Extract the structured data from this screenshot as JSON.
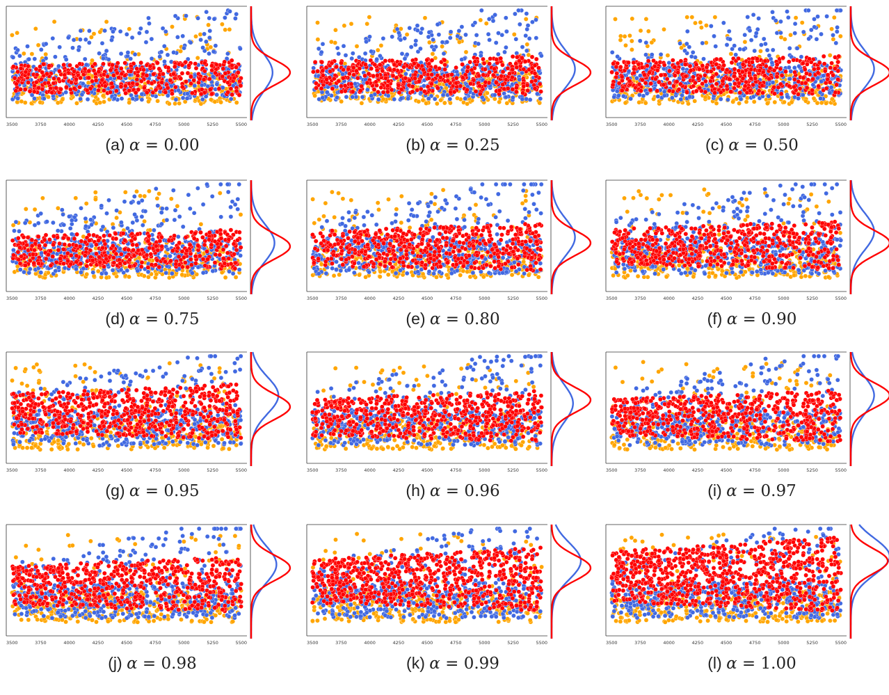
{
  "figure": {
    "alpha_symbol": "α",
    "equals_sign": " = ",
    "colors": {
      "blue": "#4169e1",
      "orange": "#ffa500",
      "red": "#ff0000",
      "axis": "#333333"
    }
  },
  "chart_data": [
    {
      "type": "scatter",
      "label": "(a)",
      "alpha": "0.00",
      "x_ticks": [
        "3500",
        "3750",
        "4000",
        "4250",
        "4500",
        "4750",
        "5000",
        "5250",
        "5500"
      ],
      "xlim": [
        3450,
        5550
      ],
      "red_level": 0.38,
      "red_density": 0.25,
      "marginal": {
        "red_peak": 0.58,
        "red_height": 1.0,
        "blue_peak": 0.58,
        "blue_height": 0.55
      }
    },
    {
      "type": "scatter",
      "label": "(b)",
      "alpha": "0.25",
      "x_ticks": [
        "3500",
        "3750",
        "4000",
        "4250",
        "4500",
        "4750",
        "5000",
        "5250",
        "5500"
      ],
      "xlim": [
        3450,
        5550
      ],
      "red_level": 0.4,
      "red_density": 0.3,
      "marginal": {
        "red_peak": 0.58,
        "red_height": 1.0,
        "blue_peak": 0.55,
        "blue_height": 0.6
      }
    },
    {
      "type": "scatter",
      "label": "(c)",
      "alpha": "0.50",
      "x_ticks": [
        "3500",
        "3750",
        "4000",
        "4250",
        "4500",
        "4750",
        "5000",
        "5250",
        "5500"
      ],
      "xlim": [
        3450,
        5550
      ],
      "red_level": 0.4,
      "red_density": 0.3,
      "marginal": {
        "red_peak": 0.58,
        "red_height": 1.0,
        "blue_peak": 0.55,
        "blue_height": 0.6
      }
    },
    {
      "type": "scatter",
      "label": "(d)",
      "alpha": "0.75",
      "x_ticks": [
        "3500",
        "3750",
        "4000",
        "4250",
        "4500",
        "4750",
        "5000",
        "5250",
        "5500"
      ],
      "xlim": [
        3450,
        5550
      ],
      "red_level": 0.4,
      "red_density": 0.3,
      "marginal": {
        "red_peak": 0.58,
        "red_height": 1.0,
        "blue_peak": 0.55,
        "blue_height": 0.6
      }
    },
    {
      "type": "scatter",
      "label": "(e)",
      "alpha": "0.80",
      "x_ticks": [
        "3500",
        "3750",
        "4000",
        "4250",
        "4500",
        "4750",
        "5000",
        "5250",
        "5500"
      ],
      "xlim": [
        3450,
        5550
      ],
      "red_level": 0.42,
      "red_density": 0.4,
      "marginal": {
        "red_peak": 0.55,
        "red_height": 1.0,
        "blue_peak": 0.5,
        "blue_height": 0.6
      }
    },
    {
      "type": "scatter",
      "label": "(f)",
      "alpha": "0.90",
      "x_ticks": [
        "3500",
        "3750",
        "4000",
        "4250",
        "4500",
        "4750",
        "5000",
        "5250",
        "5500"
      ],
      "xlim": [
        3450,
        5550
      ],
      "red_level": 0.44,
      "red_density": 0.42,
      "marginal": {
        "red_peak": 0.55,
        "red_height": 1.0,
        "blue_peak": 0.45,
        "blue_height": 0.6
      }
    },
    {
      "type": "scatter",
      "label": "(g)",
      "alpha": "0.95",
      "x_ticks": [
        "3500",
        "3750",
        "4000",
        "4250",
        "4500",
        "4750",
        "5000",
        "5250",
        "5500"
      ],
      "xlim": [
        3450,
        5550
      ],
      "red_level": 0.5,
      "red_density": 0.5,
      "marginal": {
        "red_peak": 0.48,
        "red_height": 1.0,
        "blue_peak": 0.38,
        "blue_height": 0.7
      }
    },
    {
      "type": "scatter",
      "label": "(h)",
      "alpha": "0.96",
      "x_ticks": [
        "3500",
        "3750",
        "4000",
        "4250",
        "4500",
        "4750",
        "5000",
        "5250",
        "5500"
      ],
      "xlim": [
        3450,
        5550
      ],
      "red_level": 0.45,
      "red_density": 0.45,
      "marginal": {
        "red_peak": 0.42,
        "red_height": 1.0,
        "blue_peak": 0.45,
        "blue_height": 0.55
      }
    },
    {
      "type": "scatter",
      "label": "(i)",
      "alpha": "0.97",
      "x_ticks": [
        "3500",
        "3750",
        "4000",
        "4250",
        "4500",
        "4750",
        "5000",
        "5250",
        "5500"
      ],
      "xlim": [
        3450,
        5550
      ],
      "red_level": 0.45,
      "red_density": 0.45,
      "marginal": {
        "red_peak": 0.38,
        "red_height": 1.0,
        "blue_peak": 0.38,
        "blue_height": 0.6
      }
    },
    {
      "type": "scatter",
      "label": "(j)",
      "alpha": "0.98",
      "x_ticks": [
        "3500",
        "3750",
        "4000",
        "4250",
        "4500",
        "4750",
        "5000",
        "5250",
        "5500"
      ],
      "xlim": [
        3450,
        5550
      ],
      "red_level": 0.5,
      "red_density": 0.5,
      "marginal": {
        "red_peak": 0.38,
        "red_height": 1.0,
        "blue_peak": 0.35,
        "blue_height": 0.65
      }
    },
    {
      "type": "scatter",
      "label": "(k)",
      "alpha": "0.99",
      "x_ticks": [
        "3500",
        "3750",
        "4000",
        "4250",
        "4500",
        "4750",
        "5000",
        "5250",
        "5500"
      ],
      "xlim": [
        3450,
        5550
      ],
      "red_level": 0.55,
      "red_density": 0.6,
      "marginal": {
        "red_peak": 0.38,
        "red_height": 1.0,
        "blue_peak": 0.32,
        "blue_height": 0.75
      }
    },
    {
      "type": "scatter",
      "label": "(l)",
      "alpha": "1.00",
      "x_ticks": [
        "3500",
        "3750",
        "4000",
        "4250",
        "4500",
        "4750",
        "5000",
        "5250",
        "5500"
      ],
      "xlim": [
        3450,
        5550
      ],
      "red_level": 0.6,
      "red_density": 0.75,
      "marginal": {
        "red_peak": 0.32,
        "red_height": 0.95,
        "blue_peak": 0.28,
        "blue_height": 1.0
      }
    }
  ]
}
